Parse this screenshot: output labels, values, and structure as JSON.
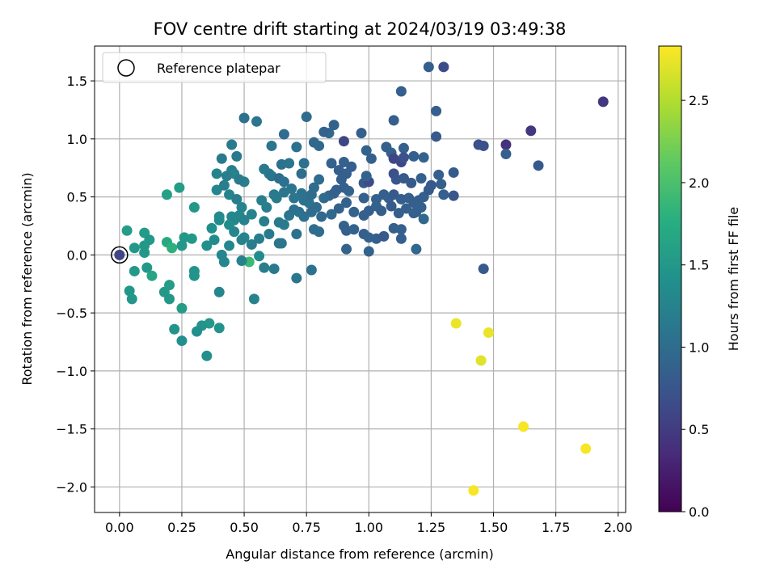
{
  "chart_data": {
    "type": "scatter",
    "title": "FOV centre drift starting at 2024/03/19 03:49:38",
    "xlabel": "Angular distance from reference (arcmin)",
    "ylabel": "Rotation from reference (arcmin)",
    "xlim": [
      -0.1,
      2.03
    ],
    "ylim": [
      -2.22,
      1.8
    ],
    "x_ticks": [
      0.0,
      0.25,
      0.5,
      0.75,
      1.0,
      1.25,
      1.5,
      1.75,
      2.0
    ],
    "x_tick_labels": [
      "0.00",
      "0.25",
      "0.50",
      "0.75",
      "1.00",
      "1.25",
      "1.50",
      "1.75",
      "2.00"
    ],
    "y_ticks": [
      -2.0,
      -1.5,
      -1.0,
      -0.5,
      0.0,
      0.5,
      1.0,
      1.5
    ],
    "y_tick_labels": [
      "−2.0",
      "−1.5",
      "−1.0",
      "−0.5",
      "0.0",
      "0.5",
      "1.0",
      "1.5"
    ],
    "grid": true,
    "colormap": "viridis",
    "colorbar": {
      "label": "Hours from first FF file",
      "range": [
        0.0,
        2.83
      ],
      "ticks": [
        0.0,
        0.5,
        1.0,
        1.5,
        2.0,
        2.5
      ],
      "tick_labels": [
        "0.0",
        "0.5",
        "1.0",
        "1.5",
        "2.0",
        "2.5"
      ]
    },
    "legend": {
      "label": "Reference platepar",
      "position": "upper-left"
    },
    "reference_point": {
      "x": 0.0,
      "y": 0.0,
      "hours": 0.6
    },
    "points": [
      [
        1.24,
        1.62,
        0.85
      ],
      [
        1.3,
        1.62,
        0.65
      ],
      [
        1.13,
        1.41,
        0.85
      ],
      [
        1.94,
        1.32,
        0.45
      ],
      [
        0.5,
        1.18,
        1.05
      ],
      [
        0.55,
        1.15,
        1.1
      ],
      [
        0.75,
        1.19,
        1.0
      ],
      [
        1.1,
        1.16,
        0.85
      ],
      [
        0.86,
        1.12,
        0.9
      ],
      [
        1.27,
        1.24,
        0.85
      ],
      [
        0.66,
        1.04,
        1.0
      ],
      [
        0.97,
        1.05,
        0.85
      ],
      [
        0.84,
        1.05,
        0.95
      ],
      [
        0.82,
        1.06,
        0.9
      ],
      [
        1.65,
        1.07,
        0.45
      ],
      [
        1.27,
        1.02,
        0.8
      ],
      [
        0.9,
        0.98,
        0.6
      ],
      [
        0.78,
        0.97,
        0.95
      ],
      [
        0.8,
        0.94,
        0.95
      ],
      [
        0.71,
        0.93,
        1.05
      ],
      [
        0.61,
        0.94,
        1.1
      ],
      [
        0.45,
        0.95,
        1.15
      ],
      [
        1.55,
        0.95,
        0.4
      ],
      [
        1.44,
        0.95,
        0.7
      ],
      [
        1.46,
        0.94,
        0.7
      ],
      [
        1.07,
        0.93,
        0.85
      ],
      [
        0.99,
        0.9,
        0.9
      ],
      [
        1.09,
        0.88,
        0.85
      ],
      [
        1.14,
        0.92,
        0.85
      ],
      [
        1.18,
        0.85,
        0.85
      ],
      [
        1.22,
        0.84,
        0.9
      ],
      [
        0.41,
        0.83,
        1.15
      ],
      [
        0.47,
        0.85,
        1.15
      ],
      [
        1.55,
        0.87,
        0.85
      ],
      [
        1.01,
        0.83,
        0.85
      ],
      [
        1.1,
        0.83,
        0.6
      ],
      [
        1.13,
        0.8,
        0.6
      ],
      [
        1.14,
        0.84,
        0.7
      ],
      [
        0.65,
        0.78,
        1.05
      ],
      [
        0.68,
        0.79,
        1.1
      ],
      [
        0.74,
        0.79,
        1.05
      ],
      [
        0.58,
        0.74,
        1.15
      ],
      [
        0.6,
        0.7,
        1.15
      ],
      [
        0.45,
        0.73,
        1.2
      ],
      [
        0.46,
        0.7,
        1.25
      ],
      [
        0.39,
        0.7,
        1.25
      ],
      [
        0.43,
        0.68,
        1.2
      ],
      [
        0.5,
        0.63,
        1.2
      ],
      [
        0.48,
        0.65,
        1.15
      ],
      [
        0.61,
        0.68,
        1.1
      ],
      [
        0.64,
        0.66,
        1.0
      ],
      [
        0.66,
        0.63,
        1.05
      ],
      [
        0.73,
        0.7,
        1.0
      ],
      [
        0.8,
        0.65,
        1.0
      ],
      [
        0.85,
        0.79,
        0.9
      ],
      [
        0.9,
        0.8,
        0.9
      ],
      [
        0.93,
        0.76,
        0.85
      ],
      [
        0.88,
        0.73,
        0.85
      ],
      [
        0.91,
        0.7,
        0.85
      ],
      [
        0.89,
        0.65,
        0.85
      ],
      [
        0.98,
        0.62,
        0.8
      ],
      [
        1.0,
        0.63,
        0.65
      ],
      [
        0.99,
        0.68,
        0.9
      ],
      [
        1.1,
        0.7,
        0.7
      ],
      [
        1.11,
        0.65,
        0.75
      ],
      [
        1.14,
        0.66,
        0.8
      ],
      [
        1.17,
        0.62,
        0.8
      ],
      [
        1.21,
        0.66,
        0.85
      ],
      [
        1.25,
        0.6,
        0.8
      ],
      [
        1.28,
        0.69,
        0.85
      ],
      [
        1.34,
        0.71,
        0.8
      ],
      [
        1.29,
        0.61,
        0.85
      ],
      [
        1.3,
        0.52,
        0.85
      ],
      [
        1.34,
        0.51,
        0.75
      ],
      [
        1.68,
        0.77,
        0.8
      ],
      [
        0.39,
        0.56,
        1.3
      ],
      [
        0.42,
        0.6,
        1.2
      ],
      [
        0.44,
        0.52,
        1.25
      ],
      [
        0.47,
        0.48,
        1.2
      ],
      [
        0.49,
        0.41,
        1.25
      ],
      [
        0.57,
        0.47,
        1.2
      ],
      [
        0.59,
        0.41,
        1.2
      ],
      [
        0.63,
        0.49,
        1.15
      ],
      [
        0.62,
        0.52,
        1.15
      ],
      [
        0.66,
        0.54,
        1.1
      ],
      [
        0.69,
        0.57,
        1.1
      ],
      [
        0.73,
        0.53,
        1.05
      ],
      [
        0.7,
        0.49,
        1.1
      ],
      [
        0.74,
        0.47,
        1.05
      ],
      [
        0.76,
        0.45,
        1.05
      ],
      [
        0.78,
        0.58,
        1.0
      ],
      [
        0.77,
        0.52,
        1.0
      ],
      [
        0.82,
        0.49,
        1.0
      ],
      [
        0.84,
        0.51,
        0.95
      ],
      [
        0.86,
        0.53,
        0.9
      ],
      [
        0.87,
        0.56,
        0.85
      ],
      [
        0.9,
        0.58,
        0.85
      ],
      [
        0.92,
        0.55,
        0.9
      ],
      [
        0.98,
        0.49,
        0.85
      ],
      [
        1.03,
        0.48,
        0.85
      ],
      [
        1.06,
        0.52,
        0.85
      ],
      [
        1.08,
        0.49,
        0.85
      ],
      [
        1.1,
        0.52,
        0.8
      ],
      [
        1.13,
        0.48,
        0.85
      ],
      [
        1.16,
        0.49,
        0.85
      ],
      [
        1.18,
        0.45,
        0.85
      ],
      [
        1.2,
        0.47,
        0.85
      ],
      [
        1.22,
        0.5,
        0.85
      ],
      [
        1.24,
        0.56,
        0.8
      ],
      [
        1.21,
        0.41,
        0.85
      ],
      [
        1.19,
        0.37,
        0.9
      ],
      [
        1.22,
        0.31,
        0.95
      ],
      [
        0.24,
        0.58,
        1.55
      ],
      [
        0.19,
        0.52,
        1.6
      ],
      [
        0.3,
        0.41,
        1.5
      ],
      [
        0.37,
        0.23,
        1.4
      ],
      [
        0.4,
        0.33,
        1.35
      ],
      [
        0.45,
        0.33,
        1.3
      ],
      [
        0.46,
        0.3,
        1.3
      ],
      [
        0.48,
        0.34,
        1.3
      ],
      [
        0.5,
        0.3,
        1.25
      ],
      [
        0.53,
        0.35,
        1.25
      ],
      [
        0.58,
        0.29,
        1.2
      ],
      [
        0.64,
        0.28,
        1.15
      ],
      [
        0.66,
        0.26,
        1.15
      ],
      [
        0.68,
        0.34,
        1.1
      ],
      [
        0.7,
        0.39,
        1.05
      ],
      [
        0.72,
        0.37,
        1.05
      ],
      [
        0.74,
        0.33,
        1.05
      ],
      [
        0.77,
        0.37,
        1.0
      ],
      [
        0.79,
        0.41,
        1.0
      ],
      [
        0.81,
        0.33,
        0.95
      ],
      [
        0.85,
        0.35,
        0.95
      ],
      [
        0.88,
        0.4,
        0.9
      ],
      [
        0.91,
        0.45,
        0.9
      ],
      [
        0.94,
        0.37,
        0.9
      ],
      [
        0.98,
        0.34,
        0.85
      ],
      [
        1.0,
        0.38,
        0.85
      ],
      [
        1.03,
        0.42,
        0.9
      ],
      [
        1.05,
        0.38,
        0.85
      ],
      [
        1.09,
        0.42,
        0.8
      ],
      [
        1.12,
        0.36,
        0.85
      ],
      [
        1.15,
        0.4,
        0.85
      ],
      [
        1.18,
        0.36,
        0.85
      ],
      [
        0.4,
        0.3,
        1.35
      ],
      [
        0.44,
        0.26,
        1.35
      ],
      [
        0.46,
        0.2,
        1.3
      ],
      [
        0.5,
        0.15,
        1.3
      ],
      [
        0.56,
        0.14,
        1.2
      ],
      [
        0.6,
        0.18,
        1.15
      ],
      [
        0.65,
        0.1,
        1.15
      ],
      [
        0.71,
        0.18,
        1.05
      ],
      [
        0.78,
        0.22,
        1.0
      ],
      [
        0.8,
        0.2,
        1.0
      ],
      [
        0.9,
        0.25,
        0.9
      ],
      [
        0.91,
        0.21,
        0.85
      ],
      [
        0.94,
        0.22,
        0.9
      ],
      [
        0.98,
        0.18,
        0.85
      ],
      [
        1.0,
        0.15,
        0.9
      ],
      [
        1.03,
        0.14,
        0.85
      ],
      [
        1.06,
        0.16,
        0.8
      ],
      [
        1.1,
        0.23,
        0.85
      ],
      [
        1.13,
        0.22,
        0.85
      ],
      [
        1.13,
        0.14,
        0.85
      ],
      [
        1.19,
        0.05,
        0.95
      ],
      [
        1.0,
        0.03,
        0.9
      ],
      [
        0.91,
        0.05,
        0.9
      ],
      [
        0.64,
        0.1,
        1.1
      ],
      [
        0.53,
        0.09,
        1.2
      ],
      [
        0.49,
        0.13,
        1.25
      ],
      [
        0.44,
        0.08,
        1.3
      ],
      [
        0.38,
        0.13,
        1.35
      ],
      [
        0.35,
        0.08,
        1.4
      ],
      [
        0.29,
        0.14,
        1.5
      ],
      [
        0.26,
        0.15,
        1.5
      ],
      [
        0.25,
        0.08,
        1.5
      ],
      [
        0.03,
        0.21,
        1.55
      ],
      [
        0.1,
        0.19,
        1.55
      ],
      [
        0.12,
        0.13,
        1.5
      ],
      [
        0.1,
        0.08,
        1.5
      ],
      [
        0.06,
        0.06,
        1.5
      ],
      [
        0.1,
        0.02,
        1.5
      ],
      [
        0.19,
        0.11,
        1.7
      ],
      [
        0.21,
        0.06,
        1.8
      ],
      [
        0.52,
        -0.06,
        1.9
      ],
      [
        0.56,
        -0.01,
        1.35
      ],
      [
        0.58,
        -0.11,
        1.2
      ],
      [
        0.62,
        -0.12,
        1.15
      ],
      [
        0.49,
        -0.05,
        1.25
      ],
      [
        0.42,
        -0.06,
        1.3
      ],
      [
        0.41,
        0.0,
        1.3
      ],
      [
        0.3,
        -0.14,
        1.45
      ],
      [
        0.3,
        -0.18,
        1.45
      ],
      [
        0.11,
        -0.11,
        1.5
      ],
      [
        0.06,
        -0.14,
        1.5
      ],
      [
        0.13,
        -0.18,
        1.65
      ],
      [
        0.04,
        -0.31,
        1.5
      ],
      [
        0.05,
        -0.38,
        1.5
      ],
      [
        0.18,
        -0.32,
        1.5
      ],
      [
        0.2,
        -0.26,
        1.55
      ],
      [
        0.2,
        -0.38,
        1.5
      ],
      [
        0.25,
        -0.46,
        1.55
      ],
      [
        0.4,
        -0.32,
        1.3
      ],
      [
        0.54,
        -0.38,
        1.25
      ],
      [
        0.71,
        -0.2,
        1.1
      ],
      [
        0.77,
        -0.13,
        1.05
      ],
      [
        0.36,
        -0.59,
        1.5
      ],
      [
        0.33,
        -0.61,
        1.45
      ],
      [
        0.31,
        -0.66,
        1.4
      ],
      [
        0.4,
        -0.63,
        1.45
      ],
      [
        0.22,
        -0.64,
        1.45
      ],
      [
        0.25,
        -0.74,
        1.4
      ],
      [
        0.35,
        -0.87,
        1.4
      ],
      [
        1.46,
        -0.12,
        0.8
      ],
      [
        1.35,
        -0.59,
        2.75
      ],
      [
        1.48,
        -0.67,
        2.75
      ],
      [
        1.45,
        -0.91,
        2.7
      ],
      [
        1.62,
        -1.48,
        2.8
      ],
      [
        1.87,
        -1.67,
        2.8
      ],
      [
        1.42,
        -2.03,
        2.8
      ]
    ]
  }
}
